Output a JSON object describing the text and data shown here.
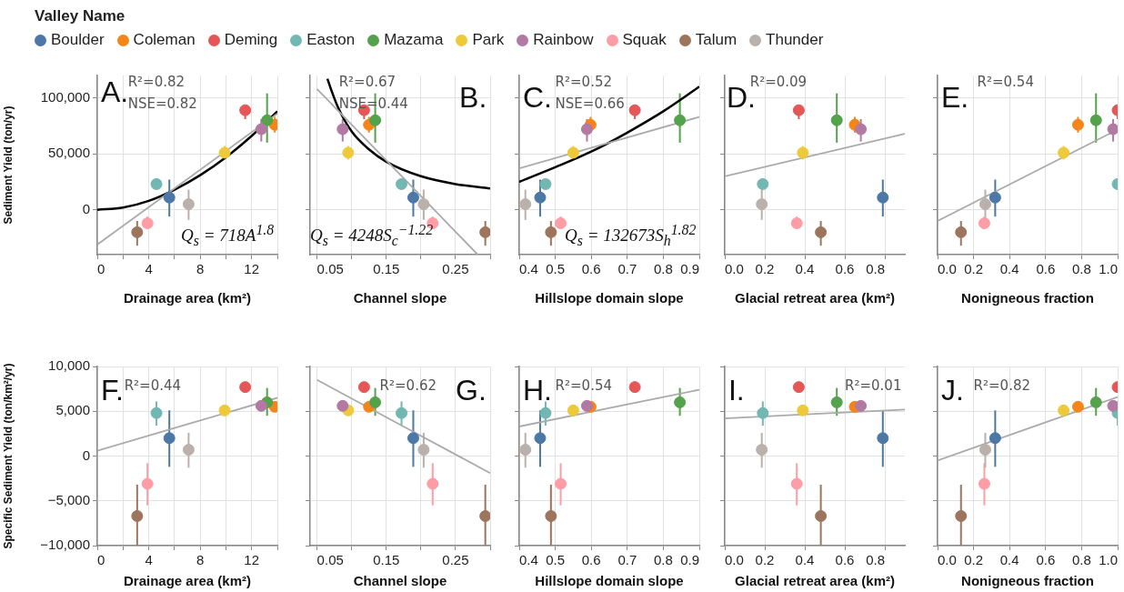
{
  "chart_data": [
    {
      "type": "scatter",
      "legend": "top",
      "legend_title": "Valley Name",
      "xlabel": "Drainage area (km²)",
      "ylabel": "Sediment Yield (ton/yr)",
      "grid": true,
      "marker": "circle",
      "xlim": [
        0,
        14
      ],
      "xticks": [
        0,
        {
          "value": 2,
          "label": null
        },
        4,
        {
          "value": 6,
          "label": null
        },
        8,
        {
          "value": 10,
          "label": null
        },
        12,
        {
          "value": 14,
          "label": null
        }
      ],
      "ylim": [
        -40000,
        120000
      ],
      "yticks": [
        0,
        {
          "value": 50000,
          "label": "50,000"
        },
        {
          "value": 100000,
          "label": "100,000"
        }
      ],
      "annotations": [
        "A.",
        "R²=0.82",
        "NSE=0.82",
        "Q$_{s}$ = 718A$^{1.8}$"
      ],
      "series": [
        {
          "name": "Boulder",
          "color": "#4c78a8",
          "x": [
            5.6
          ],
          "values": [
            11000
          ],
          "errors": [
            [
              -6000,
              27000
            ]
          ]
        },
        {
          "name": "Coleman",
          "color": "#f58518",
          "x": [
            13.8
          ],
          "values": [
            76000
          ],
          "errors": [
            [
              69000,
              83000
            ]
          ]
        },
        {
          "name": "Deming",
          "color": "#e45756",
          "x": [
            11.5
          ],
          "values": [
            89000
          ],
          "errors": [
            [
              81000,
              93000
            ]
          ]
        },
        {
          "name": "Easton",
          "color": "#72b7b2",
          "x": [
            4.6
          ],
          "values": [
            23000
          ],
          "errors": [
            [
              19000,
              26000
            ]
          ]
        },
        {
          "name": "Mazama",
          "color": "#54a24b",
          "x": [
            13.2
          ],
          "values": [
            80000
          ],
          "errors": [
            [
              60000,
              104000
            ]
          ]
        },
        {
          "name": "Park",
          "color": "#eeca3b",
          "x": [
            9.9
          ],
          "values": [
            51000
          ],
          "errors": [
            [
              45000,
              57000
            ]
          ]
        },
        {
          "name": "Rainbow",
          "color": "#b279a2",
          "x": [
            12.75
          ],
          "values": [
            72000
          ],
          "errors": [
            [
              61000,
              81000
            ]
          ]
        },
        {
          "name": "Squak",
          "color": "#ff9da6",
          "x": [
            3.9
          ],
          "values": [
            -12000
          ],
          "errors": [
            [
              -17000,
              -6000
            ]
          ]
        },
        {
          "name": "Talum",
          "color": "#9d755d",
          "x": [
            3.1
          ],
          "values": [
            -20000
          ],
          "errors": [
            [
              -32000,
              -10000
            ]
          ]
        },
        {
          "name": "Thunder",
          "color": "#bab0ac",
          "x": [
            7.1
          ],
          "values": [
            5000
          ],
          "errors": [
            [
              -9000,
              18000
            ]
          ]
        },
        {
          "type": "line",
          "marker": "none",
          "color": "#aaaaaa",
          "x": [
            0,
            14
          ],
          "values": [
            -31000,
            86000
          ]
        },
        {
          "type": "line",
          "marker": "none",
          "color": "#000000",
          "x": [
            0,
            2,
            4,
            6,
            8,
            10,
            12,
            14
          ],
          "values": [
            0,
            2000,
            8000,
            18000,
            31000,
            47000,
            66000,
            88000
          ]
        }
      ]
    },
    {
      "type": "scatter",
      "xlabel": "Channel slope",
      "grid": true,
      "marker": "circle",
      "tick_labels": "x",
      "xlim": [
        0.04,
        0.3
      ],
      "xticks": [
        0.05,
        {
          "value": 0.1,
          "label": null
        },
        0.15,
        {
          "value": 0.2,
          "label": null
        },
        0.25,
        {
          "value": 0.3,
          "label": null
        }
      ],
      "ylim": [
        -40000,
        120000
      ],
      "yticks": [
        {
          "value": 0,
          "label": null
        },
        {
          "value": 50000,
          "label": null
        },
        {
          "value": 100000,
          "label": null
        }
      ],
      "annotations": [
        "B.",
        "R²=0.67",
        "NSE=0.44",
        "Q$_{s}$ = 4248S$_{c}$$^{−1.22}$"
      ],
      "series": [
        {
          "color": "#4c78a8",
          "x": [
            0.189
          ],
          "values": [
            11000
          ],
          "errors": [
            [
              -6000,
              27000
            ]
          ]
        },
        {
          "color": "#f58518",
          "x": [
            0.125
          ],
          "values": [
            76000
          ],
          "errors": [
            [
              69000,
              83000
            ]
          ]
        },
        {
          "color": "#e45756",
          "x": [
            0.118
          ],
          "values": [
            89000
          ],
          "errors": [
            [
              81000,
              93000
            ]
          ]
        },
        {
          "color": "#72b7b2",
          "x": [
            0.172
          ],
          "values": [
            23000
          ],
          "errors": [
            [
              19000,
              26000
            ]
          ]
        },
        {
          "color": "#54a24b",
          "x": [
            0.134
          ],
          "values": [
            80000
          ],
          "errors": [
            [
              60000,
              104000
            ]
          ]
        },
        {
          "color": "#eeca3b",
          "x": [
            0.095
          ],
          "values": [
            51000
          ],
          "errors": [
            [
              45000,
              57000
            ]
          ]
        },
        {
          "color": "#b279a2",
          "x": [
            0.087
          ],
          "values": [
            72000
          ],
          "errors": [
            [
              61000,
              81000
            ]
          ]
        },
        {
          "color": "#ff9da6",
          "x": [
            0.217
          ],
          "values": [
            -12000
          ],
          "errors": [
            [
              -17000,
              -6000
            ]
          ]
        },
        {
          "color": "#9d755d",
          "x": [
            0.293
          ],
          "values": [
            -20000
          ],
          "errors": [
            [
              -32000,
              -10000
            ]
          ]
        },
        {
          "color": "#bab0ac",
          "x": [
            0.204
          ],
          "values": [
            5000
          ],
          "errors": [
            [
              -9000,
              18000
            ]
          ]
        },
        {
          "type": "line",
          "marker": "none",
          "color": "#aaaaaa",
          "x": [
            0.05,
            0.282
          ],
          "values": [
            108000,
            -40000
          ]
        },
        {
          "type": "line",
          "marker": "none",
          "color": "#000000",
          "x": [
            0.065,
            0.07,
            0.08,
            0.1,
            0.125,
            0.15,
            0.2,
            0.25,
            0.3
          ],
          "values": [
            117000,
            108000,
            92000,
            70000,
            54000,
            43000,
            30000,
            23000,
            19000
          ]
        }
      ]
    },
    {
      "type": "scatter",
      "xlabel": "Hillslope domain slope",
      "grid": true,
      "marker": "circle",
      "tick_labels": "x",
      "xlim": [
        0.4,
        0.9
      ],
      "xticks": [
        0.4,
        0.5,
        0.6,
        0.7,
        0.8,
        0.9
      ],
      "ylim": [
        -40000,
        120000
      ],
      "yticks": [
        {
          "value": 0,
          "label": null
        },
        {
          "value": 50000,
          "label": null
        },
        {
          "value": 100000,
          "label": null
        }
      ],
      "annotations": [
        "C.",
        "R²=0.52",
        "NSE=0.66",
        "Q$_{s}$ = 132673S$_{h}$$^{1.82}$"
      ],
      "series": [
        {
          "color": "#4c78a8",
          "x": [
            0.458
          ],
          "values": [
            11000
          ],
          "errors": [
            [
              -6000,
              27000
            ]
          ]
        },
        {
          "color": "#f58518",
          "x": [
            0.598
          ],
          "values": [
            76000
          ],
          "errors": [
            [
              69000,
              83000
            ]
          ]
        },
        {
          "color": "#e45756",
          "x": [
            0.721
          ],
          "values": [
            89000
          ],
          "errors": [
            [
              81000,
              93000
            ]
          ]
        },
        {
          "color": "#72b7b2",
          "x": [
            0.473
          ],
          "values": [
            23000
          ],
          "errors": [
            [
              19000,
              26000
            ]
          ]
        },
        {
          "color": "#54a24b",
          "x": [
            0.846
          ],
          "values": [
            80000
          ],
          "errors": [
            [
              60000,
              104000
            ]
          ]
        },
        {
          "color": "#eeca3b",
          "x": [
            0.55
          ],
          "values": [
            51000
          ],
          "errors": [
            [
              45000,
              57000
            ]
          ]
        },
        {
          "color": "#b279a2",
          "x": [
            0.588
          ],
          "values": [
            72000
          ],
          "errors": [
            [
              61000,
              81000
            ]
          ]
        },
        {
          "color": "#ff9da6",
          "x": [
            0.515
          ],
          "values": [
            -12000
          ],
          "errors": [
            [
              -17000,
              -6000
            ]
          ]
        },
        {
          "color": "#9d755d",
          "x": [
            0.488
          ],
          "values": [
            -20000
          ],
          "errors": [
            [
              -32000,
              -10000
            ]
          ]
        },
        {
          "color": "#bab0ac",
          "x": [
            0.417
          ],
          "values": [
            5000
          ],
          "errors": [
            [
              -9000,
              18000
            ]
          ]
        },
        {
          "type": "line",
          "marker": "none",
          "color": "#aaaaaa",
          "x": [
            0.4,
            0.9
          ],
          "values": [
            37000,
            83000
          ]
        },
        {
          "type": "line",
          "marker": "none",
          "color": "#000000",
          "x": [
            0.4,
            0.5,
            0.6,
            0.7,
            0.8,
            0.9
          ],
          "values": [
            25000,
            38000,
            52000,
            69000,
            88000,
            110000
          ]
        }
      ]
    },
    {
      "type": "scatter",
      "xlabel": "Glacial retreat area (km²)",
      "grid": true,
      "marker": "circle",
      "tick_labels": "x",
      "xlim": [
        0,
        0.9
      ],
      "xticks": [
        {
          "value": 0,
          "label": "0.0"
        },
        0.2,
        0.4,
        0.6,
        0.8
      ],
      "ylim": [
        -40000,
        120000
      ],
      "yticks": [
        {
          "value": 0,
          "label": null
        },
        {
          "value": 50000,
          "label": null
        },
        {
          "value": 100000,
          "label": null
        }
      ],
      "annotations": [
        "D.",
        "R²=0.09"
      ],
      "series": [
        {
          "color": "#4c78a8",
          "x": [
            0.79
          ],
          "values": [
            11000
          ],
          "errors": [
            [
              -6000,
              27000
            ]
          ]
        },
        {
          "color": "#f58518",
          "x": [
            0.65
          ],
          "values": [
            76000
          ],
          "errors": [
            [
              69000,
              83000
            ]
          ]
        },
        {
          "color": "#e45756",
          "x": [
            0.37
          ],
          "values": [
            89000
          ],
          "errors": [
            [
              81000,
              93000
            ]
          ]
        },
        {
          "color": "#72b7b2",
          "x": [
            0.19
          ],
          "values": [
            23000
          ],
          "errors": [
            [
              19000,
              26000
            ]
          ]
        },
        {
          "color": "#54a24b",
          "x": [
            0.56
          ],
          "values": [
            80000
          ],
          "errors": [
            [
              60000,
              104000
            ]
          ]
        },
        {
          "color": "#eeca3b",
          "x": [
            0.39
          ],
          "values": [
            51000
          ],
          "errors": [
            [
              45000,
              57000
            ]
          ]
        },
        {
          "color": "#b279a2",
          "x": [
            0.68
          ],
          "values": [
            72000
          ],
          "errors": [
            [
              61000,
              81000
            ]
          ]
        },
        {
          "color": "#ff9da6",
          "x": [
            0.36
          ],
          "values": [
            -12000
          ],
          "errors": [
            [
              -17000,
              -6000
            ]
          ]
        },
        {
          "color": "#9d755d",
          "x": [
            0.48
          ],
          "values": [
            -20000
          ],
          "errors": [
            [
              -32000,
              -10000
            ]
          ]
        },
        {
          "color": "#bab0ac",
          "x": [
            0.185
          ],
          "values": [
            5000
          ],
          "errors": [
            [
              -9000,
              18000
            ]
          ]
        },
        {
          "type": "line",
          "marker": "none",
          "color": "#aaaaaa",
          "x": [
            0,
            0.9
          ],
          "values": [
            30000,
            68000
          ]
        }
      ]
    },
    {
      "type": "scatter",
      "xlabel": "Nonigneous fraction",
      "grid": true,
      "marker": "circle",
      "tick_labels": "x",
      "xlim": [
        0,
        1
      ],
      "xticks": [
        {
          "value": 0,
          "label": "0.0"
        },
        0.2,
        0.4,
        0.6,
        0.8,
        {
          "value": 1,
          "label": "1.0"
        }
      ],
      "ylim": [
        -40000,
        120000
      ],
      "yticks": [
        {
          "value": 0,
          "label": null
        },
        {
          "value": 50000,
          "label": null
        },
        {
          "value": 100000,
          "label": null
        }
      ],
      "annotations": [
        "E.",
        "R²=0.54"
      ],
      "series": [
        {
          "color": "#4c78a8",
          "x": [
            0.32
          ],
          "values": [
            11000
          ],
          "errors": [
            [
              -6000,
              27000
            ]
          ]
        },
        {
          "color": "#f58518",
          "x": [
            0.78
          ],
          "values": [
            76000
          ],
          "errors": [
            [
              69000,
              83000
            ]
          ]
        },
        {
          "color": "#e45756",
          "x": [
            1.0
          ],
          "values": [
            89000
          ],
          "errors": [
            [
              81000,
              93000
            ]
          ]
        },
        {
          "color": "#72b7b2",
          "x": [
            1.0
          ],
          "values": [
            23000
          ],
          "errors": [
            [
              19000,
              26000
            ]
          ]
        },
        {
          "color": "#54a24b",
          "x": [
            0.88
          ],
          "values": [
            80000
          ],
          "errors": [
            [
              60000,
              104000
            ]
          ]
        },
        {
          "color": "#eeca3b",
          "x": [
            0.7
          ],
          "values": [
            51000
          ],
          "errors": [
            [
              45000,
              57000
            ]
          ]
        },
        {
          "color": "#b279a2",
          "x": [
            0.975
          ],
          "values": [
            72000
          ],
          "errors": [
            [
              61000,
              81000
            ]
          ]
        },
        {
          "color": "#ff9da6",
          "x": [
            0.26
          ],
          "values": [
            -12000
          ],
          "errors": [
            [
              -17000,
              -6000
            ]
          ]
        },
        {
          "color": "#9d755d",
          "x": [
            0.13
          ],
          "values": [
            -20000
          ],
          "errors": [
            [
              -32000,
              -10000
            ]
          ]
        },
        {
          "color": "#bab0ac",
          "x": [
            0.265
          ],
          "values": [
            5000
          ],
          "errors": [
            [
              -9000,
              18000
            ]
          ]
        },
        {
          "type": "line",
          "marker": "none",
          "color": "#aaaaaa",
          "x": [
            0,
            0.98
          ],
          "values": [
            -10000,
            70000
          ]
        }
      ]
    },
    {
      "type": "scatter",
      "xlabel": "Drainage area (km²)",
      "ylabel": "Specific Sediment Yield (ton/km²/yr)",
      "grid": true,
      "marker": "circle",
      "xlim": [
        0,
        14
      ],
      "xticks": [
        0,
        {
          "value": 2,
          "label": null
        },
        4,
        {
          "value": 6,
          "label": null
        },
        8,
        {
          "value": 10,
          "label": null
        },
        12,
        {
          "value": 14,
          "label": null
        }
      ],
      "ylim": [
        -10000,
        10000
      ],
      "yticks": [
        {
          "value": -10000,
          "label": "−10,000"
        },
        {
          "value": -5000,
          "label": "−5,000"
        },
        0,
        {
          "value": 5000,
          "label": "5,000"
        },
        {
          "value": 10000,
          "label": "10,000"
        }
      ],
      "annotations": [
        "F.",
        "R²=0.44"
      ],
      "series": [
        {
          "color": "#4c78a8",
          "x": [
            5.6
          ],
          "values": [
            2000
          ],
          "errors": [
            [
              -1200,
              5100
            ]
          ]
        },
        {
          "color": "#f58518",
          "x": [
            13.8
          ],
          "values": [
            5500
          ],
          "errors": [
            [
              5100,
              5900
            ]
          ]
        },
        {
          "color": "#e45756",
          "x": [
            11.5
          ],
          "values": [
            7700
          ],
          "errors": [
            [
              7100,
              8300
            ]
          ]
        },
        {
          "color": "#72b7b2",
          "x": [
            4.6
          ],
          "values": [
            4800
          ],
          "errors": [
            [
              3400,
              6100
            ]
          ]
        },
        {
          "color": "#54a24b",
          "x": [
            13.2
          ],
          "values": [
            6000
          ],
          "errors": [
            [
              4500,
              7600
            ]
          ]
        },
        {
          "color": "#eeca3b",
          "x": [
            9.9
          ],
          "values": [
            5100
          ],
          "errors": [
            [
              4500,
              5700
            ]
          ]
        },
        {
          "color": "#b279a2",
          "x": [
            12.75
          ],
          "values": [
            5600
          ],
          "errors": [
            [
              5000,
              6200
            ]
          ]
        },
        {
          "color": "#ff9da6",
          "x": [
            3.9
          ],
          "values": [
            -3100
          ],
          "errors": [
            [
              -5500,
              -800
            ]
          ]
        },
        {
          "color": "#9d755d",
          "x": [
            3.1
          ],
          "values": [
            -6700
          ],
          "errors": [
            [
              -10000,
              -3200
            ]
          ]
        },
        {
          "color": "#bab0ac",
          "x": [
            7.1
          ],
          "values": [
            700
          ],
          "errors": [
            [
              -1300,
              2600
            ]
          ]
        },
        {
          "type": "line",
          "marker": "none",
          "color": "#aaaaaa",
          "x": [
            0,
            14
          ],
          "values": [
            600,
            6500
          ]
        }
      ]
    },
    {
      "type": "scatter",
      "xlabel": "Channel slope",
      "grid": true,
      "marker": "circle",
      "tick_labels": "x",
      "xlim": [
        0.04,
        0.3
      ],
      "xticks": [
        0.05,
        {
          "value": 0.1,
          "label": null
        },
        0.15,
        {
          "value": 0.2,
          "label": null
        },
        0.25,
        {
          "value": 0.3,
          "label": null
        }
      ],
      "ylim": [
        -10000,
        10000
      ],
      "yticks": [
        {
          "value": -10000,
          "label": null
        },
        {
          "value": -5000,
          "label": null
        },
        {
          "value": 0,
          "label": null
        },
        {
          "value": 5000,
          "label": null
        },
        {
          "value": 10000,
          "label": null
        }
      ],
      "annotations": [
        "G.",
        "R²=0.62"
      ],
      "series": [
        {
          "color": "#4c78a8",
          "x": [
            0.189
          ],
          "values": [
            2000
          ],
          "errors": [
            [
              -1200,
              5100
            ]
          ]
        },
        {
          "color": "#f58518",
          "x": [
            0.125
          ],
          "values": [
            5500
          ],
          "errors": [
            [
              5100,
              5900
            ]
          ]
        },
        {
          "color": "#e45756",
          "x": [
            0.118
          ],
          "values": [
            7700
          ],
          "errors": [
            [
              7100,
              8300
            ]
          ]
        },
        {
          "color": "#72b7b2",
          "x": [
            0.172
          ],
          "values": [
            4800
          ],
          "errors": [
            [
              3400,
              6100
            ]
          ]
        },
        {
          "color": "#54a24b",
          "x": [
            0.134
          ],
          "values": [
            6000
          ],
          "errors": [
            [
              4500,
              7600
            ]
          ]
        },
        {
          "color": "#eeca3b",
          "x": [
            0.095
          ],
          "values": [
            5100
          ],
          "errors": [
            [
              4500,
              5700
            ]
          ]
        },
        {
          "color": "#b279a2",
          "x": [
            0.087
          ],
          "values": [
            5600
          ],
          "errors": [
            [
              5000,
              6200
            ]
          ]
        },
        {
          "color": "#ff9da6",
          "x": [
            0.217
          ],
          "values": [
            -3100
          ],
          "errors": [
            [
              -5500,
              -800
            ]
          ]
        },
        {
          "color": "#9d755d",
          "x": [
            0.293
          ],
          "values": [
            -6700
          ],
          "errors": [
            [
              -10000,
              -3200
            ]
          ]
        },
        {
          "color": "#bab0ac",
          "x": [
            0.204
          ],
          "values": [
            700
          ],
          "errors": [
            [
              -1300,
              2600
            ]
          ]
        },
        {
          "type": "line",
          "marker": "none",
          "color": "#aaaaaa",
          "x": [
            0.05,
            0.3
          ],
          "values": [
            8500,
            -1900
          ]
        }
      ]
    },
    {
      "type": "scatter",
      "xlabel": "Hillslope domain slope",
      "grid": true,
      "marker": "circle",
      "tick_labels": "x",
      "xlim": [
        0.4,
        0.9
      ],
      "xticks": [
        0.4,
        0.5,
        0.6,
        0.7,
        0.8,
        0.9
      ],
      "ylim": [
        -10000,
        10000
      ],
      "yticks": [
        {
          "value": -10000,
          "label": null
        },
        {
          "value": -5000,
          "label": null
        },
        {
          "value": 0,
          "label": null
        },
        {
          "value": 5000,
          "label": null
        },
        {
          "value": 10000,
          "label": null
        }
      ],
      "annotations": [
        "H.",
        "R²=0.54"
      ],
      "series": [
        {
          "color": "#4c78a8",
          "x": [
            0.458
          ],
          "values": [
            2000
          ],
          "errors": [
            [
              -1200,
              5100
            ]
          ]
        },
        {
          "color": "#f58518",
          "x": [
            0.598
          ],
          "values": [
            5500
          ],
          "errors": [
            [
              5100,
              5900
            ]
          ]
        },
        {
          "color": "#e45756",
          "x": [
            0.721
          ],
          "values": [
            7700
          ],
          "errors": [
            [
              7100,
              8300
            ]
          ]
        },
        {
          "color": "#72b7b2",
          "x": [
            0.473
          ],
          "values": [
            4800
          ],
          "errors": [
            [
              3400,
              6100
            ]
          ]
        },
        {
          "color": "#54a24b",
          "x": [
            0.846
          ],
          "values": [
            6000
          ],
          "errors": [
            [
              4500,
              7600
            ]
          ]
        },
        {
          "color": "#eeca3b",
          "x": [
            0.55
          ],
          "values": [
            5100
          ],
          "errors": [
            [
              4500,
              5700
            ]
          ]
        },
        {
          "color": "#b279a2",
          "x": [
            0.588
          ],
          "values": [
            5600
          ],
          "errors": [
            [
              5000,
              6200
            ]
          ]
        },
        {
          "color": "#ff9da6",
          "x": [
            0.515
          ],
          "values": [
            -3100
          ],
          "errors": [
            [
              -5500,
              -800
            ]
          ]
        },
        {
          "color": "#9d755d",
          "x": [
            0.488
          ],
          "values": [
            -6700
          ],
          "errors": [
            [
              -10000,
              -3200
            ]
          ]
        },
        {
          "color": "#bab0ac",
          "x": [
            0.417
          ],
          "values": [
            700
          ],
          "errors": [
            [
              -1300,
              2600
            ]
          ]
        },
        {
          "type": "line",
          "marker": "none",
          "color": "#aaaaaa",
          "x": [
            0.4,
            0.9
          ],
          "values": [
            3300,
            7400
          ]
        }
      ]
    },
    {
      "type": "scatter",
      "xlabel": "Glacial retreat area (km²)",
      "grid": true,
      "marker": "circle",
      "tick_labels": "x",
      "xlim": [
        0,
        0.9
      ],
      "xticks": [
        {
          "value": 0,
          "label": "0.0"
        },
        0.2,
        0.4,
        0.6,
        0.8
      ],
      "ylim": [
        -10000,
        10000
      ],
      "yticks": [
        {
          "value": -10000,
          "label": null
        },
        {
          "value": -5000,
          "label": null
        },
        {
          "value": 0,
          "label": null
        },
        {
          "value": 5000,
          "label": null
        },
        {
          "value": 10000,
          "label": null
        }
      ],
      "annotations": [
        "I.",
        "R²=0.01"
      ],
      "series": [
        {
          "color": "#4c78a8",
          "x": [
            0.79
          ],
          "values": [
            2000
          ],
          "errors": [
            [
              -1200,
              5100
            ]
          ]
        },
        {
          "color": "#f58518",
          "x": [
            0.65
          ],
          "values": [
            5500
          ],
          "errors": [
            [
              5100,
              5900
            ]
          ]
        },
        {
          "color": "#e45756",
          "x": [
            0.37
          ],
          "values": [
            7700
          ],
          "errors": [
            [
              7100,
              8300
            ]
          ]
        },
        {
          "color": "#72b7b2",
          "x": [
            0.19
          ],
          "values": [
            4800
          ],
          "errors": [
            [
              3400,
              6100
            ]
          ]
        },
        {
          "color": "#54a24b",
          "x": [
            0.56
          ],
          "values": [
            6000
          ],
          "errors": [
            [
              4500,
              7600
            ]
          ]
        },
        {
          "color": "#eeca3b",
          "x": [
            0.39
          ],
          "values": [
            5100
          ],
          "errors": [
            [
              4500,
              5700
            ]
          ]
        },
        {
          "color": "#b279a2",
          "x": [
            0.68
          ],
          "values": [
            5600
          ],
          "errors": [
            [
              5000,
              6200
            ]
          ]
        },
        {
          "color": "#ff9da6",
          "x": [
            0.36
          ],
          "values": [
            -3100
          ],
          "errors": [
            [
              -5500,
              -800
            ]
          ]
        },
        {
          "color": "#9d755d",
          "x": [
            0.48
          ],
          "values": [
            -6700
          ],
          "errors": [
            [
              -10000,
              -3200
            ]
          ]
        },
        {
          "color": "#bab0ac",
          "x": [
            0.185
          ],
          "values": [
            700
          ],
          "errors": [
            [
              -1300,
              2600
            ]
          ]
        },
        {
          "type": "line",
          "marker": "none",
          "color": "#aaaaaa",
          "x": [
            0,
            0.9
          ],
          "values": [
            4200,
            5200
          ]
        }
      ]
    },
    {
      "type": "scatter",
      "xlabel": "Nonigneous fraction",
      "grid": true,
      "marker": "circle",
      "tick_labels": "x",
      "xlim": [
        0,
        1
      ],
      "xticks": [
        {
          "value": 0,
          "label": "0.0"
        },
        0.2,
        0.4,
        0.6,
        0.8,
        {
          "value": 1,
          "label": "1.0"
        }
      ],
      "ylim": [
        -10000,
        10000
      ],
      "yticks": [
        {
          "value": -10000,
          "label": null
        },
        {
          "value": -5000,
          "label": null
        },
        {
          "value": 0,
          "label": null
        },
        {
          "value": 5000,
          "label": null
        },
        {
          "value": 10000,
          "label": null
        }
      ],
      "annotations": [
        "J.",
        "R²=0.82"
      ],
      "series": [
        {
          "color": "#4c78a8",
          "x": [
            0.32
          ],
          "values": [
            2000
          ],
          "errors": [
            [
              -1200,
              5100
            ]
          ]
        },
        {
          "color": "#f58518",
          "x": [
            0.78
          ],
          "values": [
            5500
          ],
          "errors": [
            [
              5100,
              5900
            ]
          ]
        },
        {
          "color": "#e45756",
          "x": [
            1.0
          ],
          "values": [
            7700
          ],
          "errors": [
            [
              7100,
              8300
            ]
          ]
        },
        {
          "color": "#72b7b2",
          "x": [
            1.0
          ],
          "values": [
            4800
          ],
          "errors": [
            [
              3400,
              6100
            ]
          ]
        },
        {
          "color": "#54a24b",
          "x": [
            0.88
          ],
          "values": [
            6000
          ],
          "errors": [
            [
              4500,
              7600
            ]
          ]
        },
        {
          "color": "#eeca3b",
          "x": [
            0.7
          ],
          "values": [
            5100
          ],
          "errors": [
            [
              4500,
              5700
            ]
          ]
        },
        {
          "color": "#b279a2",
          "x": [
            0.975
          ],
          "values": [
            5600
          ],
          "errors": [
            [
              5000,
              6200
            ]
          ]
        },
        {
          "color": "#ff9da6",
          "x": [
            0.26
          ],
          "values": [
            -3100
          ],
          "errors": [
            [
              -5500,
              -800
            ]
          ]
        },
        {
          "color": "#9d755d",
          "x": [
            0.13
          ],
          "values": [
            -6700
          ],
          "errors": [
            [
              -10000,
              -3200
            ]
          ]
        },
        {
          "color": "#bab0ac",
          "x": [
            0.265
          ],
          "values": [
            700
          ],
          "errors": [
            [
              -1300,
              2600
            ]
          ]
        },
        {
          "type": "line",
          "marker": "none",
          "color": "#aaaaaa",
          "x": [
            0,
            1
          ],
          "values": [
            -500,
            6600
          ]
        }
      ]
    }
  ]
}
